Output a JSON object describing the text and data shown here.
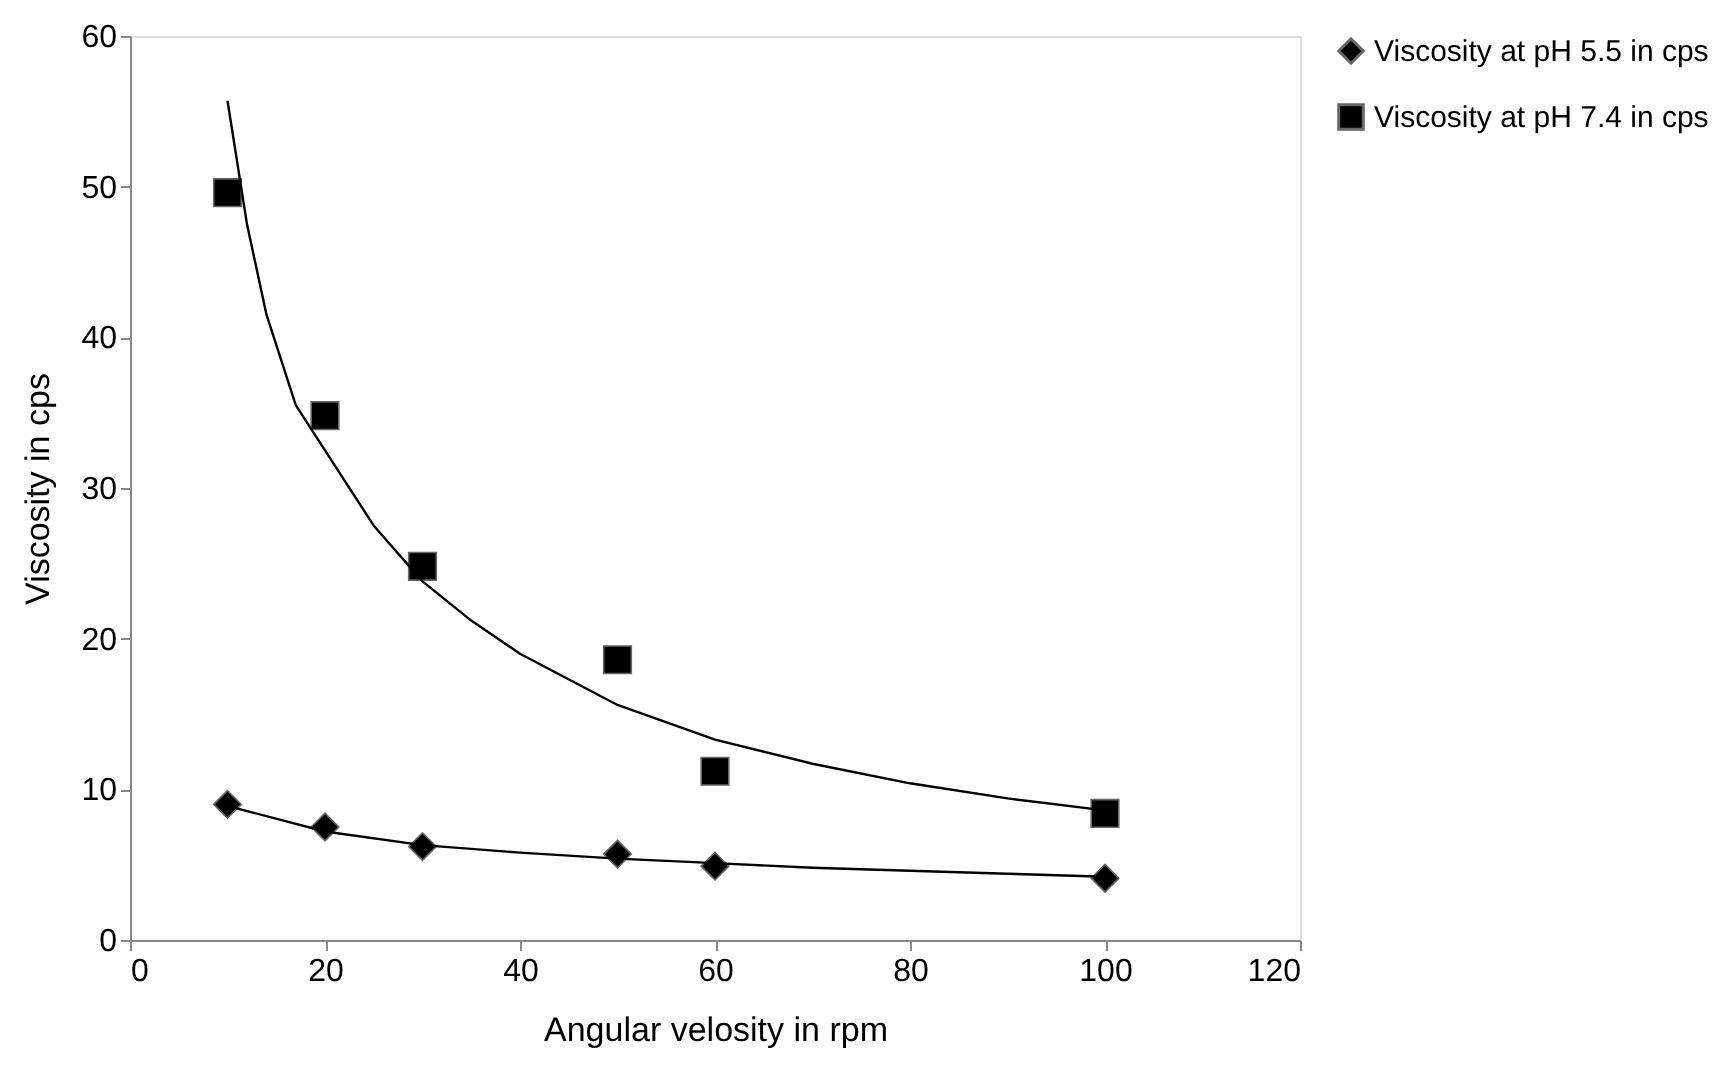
{
  "chart_data": {
    "type": "scatter",
    "xlabel": "Angular  velosity  in rpm",
    "ylabel": "Viscosity in cps",
    "x": [
      10,
      20,
      30,
      50,
      60,
      100
    ],
    "series": [
      {
        "name": "Viscosity at pH 5.5 in cps",
        "color": "#000000",
        "marker": "diamond",
        "values": [
          9.0,
          7.5,
          6.2,
          5.7,
          4.9,
          4.1
        ]
      },
      {
        "name": "Viscosity at pH 7.4 in cps",
        "color": "#000000",
        "marker": "square",
        "values": [
          49.6,
          34.8,
          24.8,
          18.6,
          11.2,
          8.4
        ]
      },
      {
        "type": "line",
        "color": "#000000",
        "x": [
          10,
          20,
          30,
          40,
          50,
          60,
          70,
          80,
          90,
          100
        ],
        "values": [
          8.9,
          7.2,
          6.3,
          5.8,
          5.4,
          5.1,
          4.8,
          4.6,
          4.4,
          4.2
        ]
      },
      {
        "type": "line",
        "color": "#000000",
        "x": [
          10,
          12,
          14,
          17,
          20,
          25,
          30,
          35,
          40,
          50,
          60,
          70,
          80,
          90,
          100
        ],
        "values": [
          55.7,
          47.5,
          41.5,
          35.5,
          32.5,
          27.5,
          23.8,
          21.2,
          19.0,
          15.6,
          13.3,
          11.7,
          10.4,
          9.4,
          8.6
        ]
      }
    ],
    "xlim": [
      0,
      120
    ],
    "xticks": [
      0,
      20,
      40,
      60,
      80,
      100,
      120
    ],
    "ylim": [
      0,
      60
    ],
    "yticks": [
      0,
      10,
      20,
      30,
      40,
      50,
      60
    ],
    "grid": false,
    "legend": "right"
  }
}
